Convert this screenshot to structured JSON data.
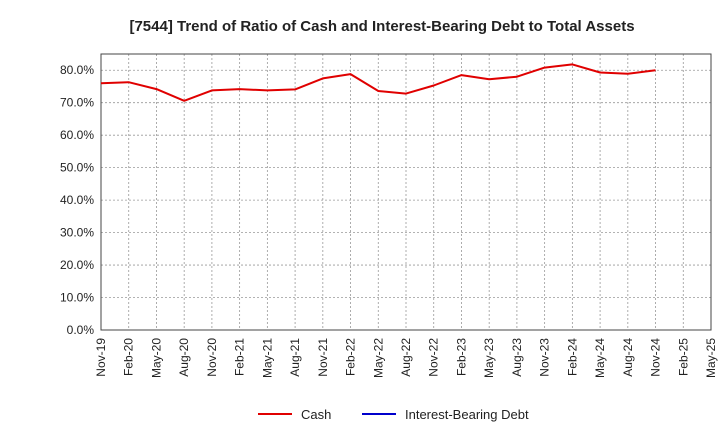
{
  "chart_data": {
    "type": "line",
    "title": "[7544]  Trend of Ratio of Cash and Interest-Bearing Debt to Total Assets",
    "xlabel": "",
    "ylabel": "",
    "categories": [
      "Nov-19",
      "Feb-20",
      "May-20",
      "Aug-20",
      "Nov-20",
      "Feb-21",
      "May-21",
      "Aug-21",
      "Nov-21",
      "Feb-22",
      "May-22",
      "Aug-22",
      "Nov-22",
      "Feb-23",
      "May-23",
      "Aug-23",
      "Nov-23",
      "Feb-24",
      "May-24",
      "Aug-24",
      "Nov-24",
      "Feb-25",
      "May-25"
    ],
    "y_ticks": [
      "0.0%",
      "10.0%",
      "20.0%",
      "30.0%",
      "40.0%",
      "50.0%",
      "60.0%",
      "70.0%",
      "80.0%"
    ],
    "ylim": [
      0,
      85
    ],
    "grid": true,
    "legend_position": "bottom-center",
    "series": [
      {
        "name": "Cash",
        "color": "#e00000",
        "values": [
          76.0,
          76.3,
          74.2,
          70.6,
          73.8,
          74.2,
          73.8,
          74.1,
          77.5,
          78.8,
          73.6,
          72.8,
          75.3,
          78.5,
          77.2,
          78.0,
          80.8,
          81.8,
          79.3,
          78.9,
          80.0,
          null,
          null
        ]
      },
      {
        "name": "Interest-Bearing Debt",
        "color": "#0000cc",
        "values": [
          null,
          null,
          null,
          null,
          null,
          null,
          null,
          null,
          null,
          null,
          null,
          null,
          null,
          null,
          null,
          null,
          null,
          null,
          null,
          null,
          null,
          null,
          null
        ]
      }
    ]
  }
}
